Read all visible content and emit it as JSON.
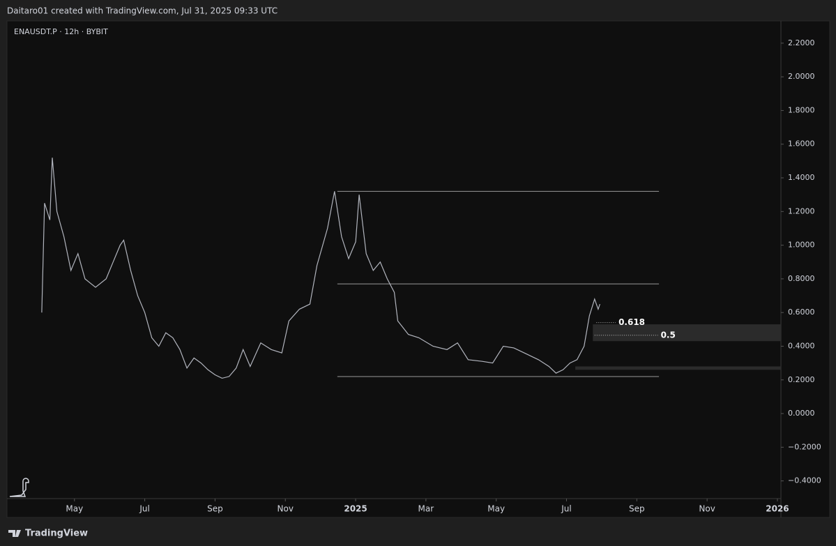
{
  "header": "Daitaro01 created with TradingView.com, Jul 31, 2025 09:33 UTC",
  "footer": "TradingView",
  "chart_data": {
    "type": "line",
    "title": "ENAUSDT.P · 12h · BYBIT",
    "xlim": [
      2.08,
      24.1
    ],
    "ylim": [
      -0.505,
      2.332
    ],
    "xticks": [
      {
        "value": 4,
        "label": "May"
      },
      {
        "value": 6,
        "label": "Jul"
      },
      {
        "value": 8,
        "label": "Sep"
      },
      {
        "value": 10,
        "label": "Nov"
      },
      {
        "value": 12,
        "label": "2025"
      },
      {
        "value": 14,
        "label": "Mar"
      },
      {
        "value": 16,
        "label": "May"
      },
      {
        "value": 18,
        "label": "Jul"
      },
      {
        "value": 20,
        "label": "Sep"
      },
      {
        "value": 22,
        "label": "Nov"
      },
      {
        "value": 24,
        "label": "2026"
      }
    ],
    "yticks": [
      {
        "value": 2.2,
        "label": "2.2000"
      },
      {
        "value": 2.0,
        "label": "2.0000"
      },
      {
        "value": 1.8,
        "label": "1.8000"
      },
      {
        "value": 1.6,
        "label": "1.6000"
      },
      {
        "value": 1.4,
        "label": "1.4000"
      },
      {
        "value": 1.2,
        "label": "1.2000"
      },
      {
        "value": 1.0,
        "label": "1.0000"
      },
      {
        "value": 0.8,
        "label": "0.8000"
      },
      {
        "value": 0.6,
        "label": "0.6000"
      },
      {
        "value": 0.4,
        "label": "0.4000"
      },
      {
        "value": 0.2,
        "label": "0.2000"
      },
      {
        "value": 0,
        "label": "0.0000"
      },
      {
        "value": -0.2,
        "label": "−0.2000"
      },
      {
        "value": -0.4,
        "label": "−0.4000"
      }
    ],
    "series": [
      {
        "color": "#b2b5be",
        "x": [
          3.07,
          3.15,
          3.3,
          3.37,
          3.5,
          3.7,
          3.9,
          4.1,
          4.3,
          4.6,
          4.9,
          5.1,
          5.3,
          5.4,
          5.6,
          5.8,
          6.0,
          6.2,
          6.4,
          6.6,
          6.8,
          7.0,
          7.2,
          7.4,
          7.6,
          7.8,
          8.0,
          8.2,
          8.4,
          8.6,
          8.8,
          9.0,
          9.3,
          9.6,
          9.9,
          10.1,
          10.4,
          10.7,
          10.9,
          11.2,
          11.4,
          11.6,
          11.8,
          12.0,
          12.1,
          12.3,
          12.5,
          12.7,
          12.9,
          13.1,
          13.2,
          13.5,
          13.8,
          14.2,
          14.6,
          14.9,
          15.2,
          15.6,
          15.9,
          16.2,
          16.5,
          16.9,
          17.2,
          17.5,
          17.7,
          17.9,
          18.1,
          18.3,
          18.5,
          18.65,
          18.8,
          18.9,
          18.95
        ],
        "values": [
          0.6,
          1.25,
          1.15,
          1.52,
          1.2,
          1.05,
          0.85,
          0.95,
          0.8,
          0.75,
          0.8,
          0.9,
          1.0,
          1.03,
          0.85,
          0.7,
          0.6,
          0.45,
          0.4,
          0.48,
          0.45,
          0.38,
          0.27,
          0.33,
          0.3,
          0.26,
          0.23,
          0.21,
          0.22,
          0.27,
          0.38,
          0.28,
          0.42,
          0.38,
          0.36,
          0.55,
          0.62,
          0.65,
          0.88,
          1.1,
          1.32,
          1.05,
          0.92,
          1.02,
          1.3,
          0.95,
          0.85,
          0.9,
          0.8,
          0.72,
          0.55,
          0.47,
          0.45,
          0.4,
          0.38,
          0.42,
          0.32,
          0.31,
          0.3,
          0.4,
          0.39,
          0.35,
          0.32,
          0.28,
          0.24,
          0.26,
          0.3,
          0.32,
          0.4,
          0.58,
          0.68,
          0.62,
          0.65
        ]
      }
    ],
    "levels": [
      {
        "value": 1.32,
        "x": [
          11.48,
          20.63
        ]
      },
      {
        "value": 0.77,
        "x": [
          11.48,
          20.63
        ]
      },
      {
        "value": 0.22,
        "x": [
          11.48,
          20.63
        ]
      }
    ],
    "zones": [
      {
        "range": [
          0.43,
          0.53
        ],
        "x": [
          18.75,
          24.1
        ]
      },
      {
        "range": [
          0.26,
          0.28
        ],
        "x": [
          18.25,
          24.1
        ]
      }
    ],
    "fib": [
      {
        "value": 0.54,
        "label": "0.618",
        "x": [
          18.85,
          19.4
        ]
      },
      {
        "value": 0.465,
        "label": "0.5",
        "x": [
          18.8,
          20.6
        ]
      }
    ]
  }
}
